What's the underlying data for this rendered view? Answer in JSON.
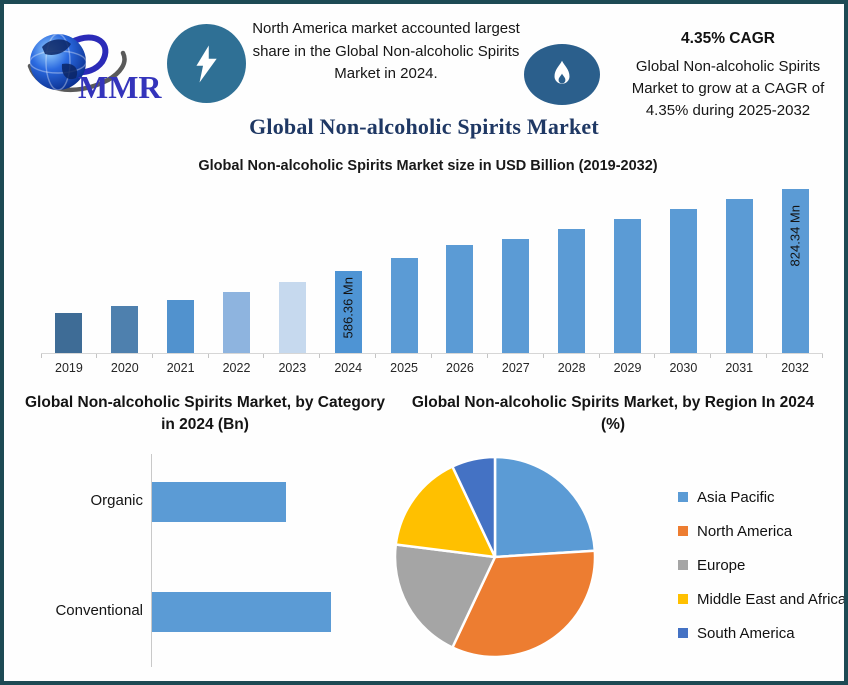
{
  "header": {
    "logo_text": "MMR",
    "note": "North America market accounted largest share in the Global Non-alcoholic Spirits Market in 2024.",
    "cagr_title": "4.35% CAGR",
    "cagr_note": "Global Non-alcoholic Spirits Market to grow at a CAGR of 4.35% during 2025-2032",
    "bolt_icon_color": "#2f7095",
    "flame_icon_color": "#2b5f8c"
  },
  "main_title": "Global Non-alcoholic Spirits Market",
  "colors": {
    "frame_border": "#1d4a54",
    "primary_bar_blue": "#5B9BD5",
    "title_navy": "#1f3864"
  },
  "chart_data": [
    {
      "id": "market_size",
      "type": "bar",
      "title": "Global Non-alcoholic Spirits Market size in USD Billion (2019-2032)",
      "categories": [
        "2019",
        "2020",
        "2021",
        "2022",
        "2023",
        "2024",
        "2025",
        "2026",
        "2027",
        "2028",
        "2029",
        "2030",
        "2031",
        "2032"
      ],
      "values": [
        466,
        485,
        504,
        526,
        555,
        586.36,
        625,
        663,
        681,
        710,
        738,
        768,
        796,
        824.34
      ],
      "unit": "Mn",
      "data_labels": {
        "2024": "586.36 Mn",
        "2032": "824.34 Mn"
      },
      "ylim": [
        350,
        824.34
      ],
      "grid": false,
      "bar_colors": [
        "#3E6C96",
        "#4E80AE",
        "#5192CE",
        "#8EB4DF",
        "#C6D9EE",
        "#4E94D4",
        "#5B9BD5",
        "#5B9BD5",
        "#5B9BD5",
        "#5B9BD5",
        "#5B9BD5",
        "#5B9BD5",
        "#5B9BD5",
        "#5B9BD5"
      ]
    },
    {
      "id": "category",
      "type": "bar",
      "orientation": "horizontal",
      "title": "Global Non-alcoholic Spirits Market, by Category in 2024 (Bn)",
      "categories": [
        "Organic",
        "Conventional"
      ],
      "values": [
        0.75,
        1.0
      ],
      "xlim": [
        0,
        1.25
      ],
      "grid": false,
      "bar_color": "#5B9BD5"
    },
    {
      "id": "region",
      "type": "pie",
      "title": "Global Non-alcoholic Spirits Market, by Region In 2024 (%)",
      "labels": [
        "Asia Pacific",
        "North America",
        "Europe",
        "Middle East and Africa",
        "South America"
      ],
      "values": [
        24,
        33,
        20,
        16,
        7
      ],
      "colors": [
        "#5B9BD5",
        "#ED7D31",
        "#A5A5A5",
        "#FFC000",
        "#4472C4"
      ],
      "legend_position": "right",
      "start_angle_deg": 0,
      "direction": "clockwise"
    }
  ]
}
